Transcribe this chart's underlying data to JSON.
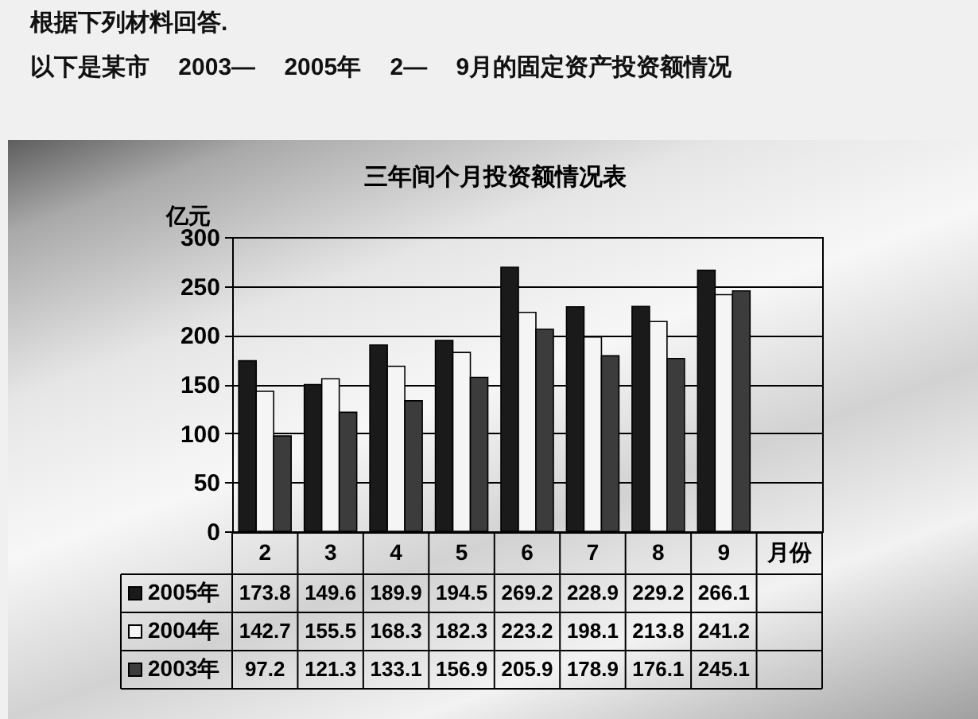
{
  "chart_data": {
    "type": "bar",
    "title": "三年间个月投资额情况表",
    "xlabel": "月份",
    "ylabel": "亿元",
    "annotations": [
      "根据下列材料回答.",
      "以下是某市 2003— 2005年 2— 9月的固定资产投资额情况"
    ],
    "categories": [
      "2",
      "3",
      "4",
      "5",
      "6",
      "7",
      "8",
      "9"
    ],
    "series": [
      {
        "name": "2005年",
        "color": "#1a1a1a",
        "values": [
          173.8,
          149.6,
          189.9,
          194.5,
          269.2,
          228.9,
          229.2,
          266.1
        ]
      },
      {
        "name": "2004年",
        "color": "#f5f5f5",
        "values": [
          142.7,
          155.5,
          168.3,
          182.3,
          223.2,
          198.1,
          213.8,
          241.2
        ]
      },
      {
        "name": "2003年",
        "color": "#3c3c3c",
        "values": [
          97.2,
          121.3,
          133.1,
          156.9,
          205.9,
          178.9,
          176.1,
          245.1
        ]
      }
    ],
    "ylim": [
      0,
      300
    ],
    "yticks": [
      0,
      50,
      100,
      150,
      200,
      250,
      300
    ],
    "grid": "y",
    "legend": "bottom",
    "data_labels": true
  }
}
